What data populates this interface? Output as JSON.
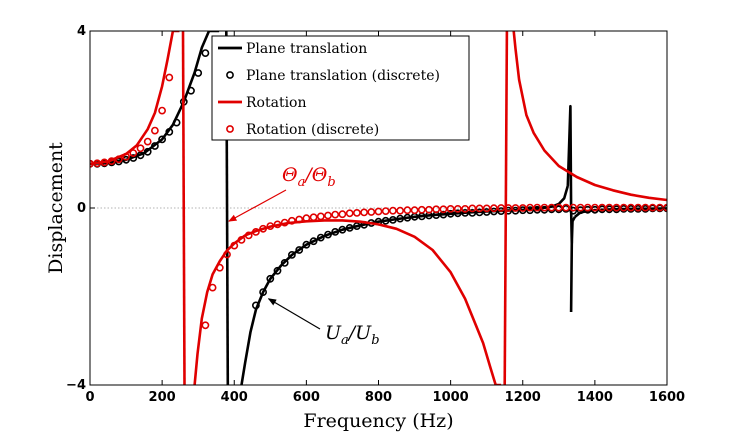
{
  "chart_data": {
    "type": "line",
    "xlabel": "Frequency (Hz)",
    "ylabel": "Displacement",
    "xlim": [
      0,
      1600
    ],
    "ylim": [
      -4,
      4
    ],
    "x_ticks": [
      0,
      200,
      400,
      600,
      800,
      1000,
      1200,
      1400,
      1600
    ],
    "y_ticks": [
      -4,
      0,
      4
    ],
    "zero_line": true,
    "legend_position": "top-right",
    "colors": {
      "black": "#000000",
      "red": "#e00000",
      "zero_line": "#9a9a9a"
    },
    "series": [
      {
        "name": "Plane translation",
        "kind": "line",
        "color": "#000000",
        "segments": [
          {
            "x": [
              0,
              50,
              100,
              150,
              200,
              230,
              260,
              290,
              310,
              330,
              345,
              358
            ],
            "y": [
              1.0,
              1.02,
              1.09,
              1.24,
              1.55,
              1.88,
              2.4,
              3.06,
              3.62,
              4.0,
              4.0,
              4.0
            ]
          },
          {
            "x": [
              378,
              382
            ],
            "y": [
              4.0,
              -4.0
            ]
          },
          {
            "x": [
              420,
              430,
              445,
              460,
              480,
              500,
              530,
              560,
              600,
              650,
              700,
              750,
              800,
              850,
              900,
              950,
              1000,
              1050,
              1100,
              1150,
              1200,
              1250,
              1280,
              1300,
              1315,
              1325
            ],
            "y": [
              -4.0,
              -3.5,
              -2.8,
              -2.3,
              -1.9,
              -1.6,
              -1.3,
              -1.06,
              -0.83,
              -0.63,
              -0.49,
              -0.39,
              -0.31,
              -0.25,
              -0.2,
              -0.16,
              -0.13,
              -0.1,
              -0.08,
              -0.06,
              -0.04,
              -0.01,
              0.03,
              0.09,
              0.22,
              0.5
            ]
          },
          {
            "x": [
              1325,
              1332,
              1334,
              1336
            ],
            "y": [
              0.5,
              2.3,
              0.0,
              -0.8
            ]
          },
          {
            "x": [
              1334,
              1336,
              1338,
              1345
            ],
            "y": [
              -2.35,
              -0.8,
              -0.3,
              -0.2
            ]
          },
          {
            "x": [
              1345,
              1360,
              1380,
              1400,
              1450,
              1500,
              1550,
              1600
            ],
            "y": [
              -0.2,
              -0.1,
              -0.07,
              -0.05,
              -0.03,
              -0.02,
              -0.015,
              -0.01
            ]
          }
        ]
      },
      {
        "name": "Plane translation (discrete)",
        "kind": "marker",
        "color": "#000000",
        "x": [
          0,
          20,
          40,
          60,
          80,
          100,
          120,
          140,
          160,
          180,
          200,
          220,
          240,
          260,
          280,
          300,
          320,
          460,
          480,
          500,
          520,
          540,
          560,
          580,
          600,
          620,
          640,
          660,
          680,
          700,
          720,
          740,
          760,
          780,
          800,
          820,
          840,
          860,
          880,
          900,
          920,
          940,
          960,
          980,
          1000,
          1020,
          1040,
          1060,
          1080,
          1100,
          1120,
          1140,
          1160,
          1180,
          1200,
          1220,
          1240,
          1260,
          1280,
          1300,
          1320,
          1340,
          1360,
          1380,
          1400,
          1420,
          1440,
          1460,
          1480,
          1500,
          1520,
          1540,
          1560,
          1580,
          1600
        ],
        "y": [
          1.0,
          1.0,
          1.01,
          1.03,
          1.05,
          1.09,
          1.13,
          1.19,
          1.27,
          1.4,
          1.55,
          1.72,
          1.93,
          2.4,
          2.65,
          3.05,
          3.5,
          -2.2,
          -1.9,
          -1.6,
          -1.42,
          -1.24,
          -1.06,
          -0.95,
          -0.83,
          -0.75,
          -0.67,
          -0.6,
          -0.54,
          -0.49,
          -0.45,
          -0.41,
          -0.38,
          -0.34,
          -0.31,
          -0.29,
          -0.27,
          -0.24,
          -0.22,
          -0.2,
          -0.19,
          -0.17,
          -0.16,
          -0.15,
          -0.13,
          -0.12,
          -0.11,
          -0.11,
          -0.1,
          -0.09,
          -0.08,
          -0.07,
          -0.06,
          -0.06,
          -0.05,
          -0.05,
          -0.04,
          -0.04,
          -0.03,
          -0.03,
          -0.02,
          -0.06,
          -0.05,
          -0.04,
          -0.04,
          -0.03,
          -0.03,
          -0.03,
          -0.02,
          -0.02,
          -0.02,
          -0.02,
          -0.01,
          -0.01,
          -0.01
        ]
      },
      {
        "name": "Rotation",
        "kind": "line",
        "color": "#e00000",
        "segments": [
          {
            "x": [
              0,
              50,
              100,
              130,
              160,
              180,
              200,
              215,
              230,
              240,
              248
            ],
            "y": [
              1.0,
              1.05,
              1.22,
              1.42,
              1.78,
              2.15,
              2.75,
              3.35,
              4.0,
              4.0,
              4.0
            ]
          },
          {
            "x": [
              258,
              262
            ],
            "y": [
              4.0,
              -4.0
            ]
          },
          {
            "x": [
              290,
              298,
              310,
              325,
              340,
              360,
              380,
              400,
              430,
              460,
              500,
              550,
              600,
              650,
              700,
              750,
              800,
              850,
              900,
              950,
              1000,
              1040,
              1070,
              1090,
              1110,
              1125,
              1135,
              1140
            ],
            "y": [
              -4.0,
              -3.3,
              -2.5,
              -1.9,
              -1.5,
              -1.2,
              -0.96,
              -0.8,
              -0.62,
              -0.52,
              -0.42,
              -0.34,
              -0.3,
              -0.28,
              -0.28,
              -0.31,
              -0.37,
              -0.47,
              -0.65,
              -0.95,
              -1.45,
              -2.05,
              -2.65,
              -3.05,
              -3.6,
              -4.0,
              -4.0,
              -4.0
            ]
          },
          {
            "x": [
              1150,
              1156
            ],
            "y": [
              -4.0,
              4.0
            ]
          },
          {
            "x": [
              1175,
              1180,
              1190,
              1210,
              1230,
              1260,
              1300,
              1350,
              1400,
              1450,
              1500,
              1550,
              1600
            ],
            "y": [
              4.0,
              3.6,
              2.9,
              2.1,
              1.7,
              1.3,
              0.95,
              0.7,
              0.52,
              0.4,
              0.3,
              0.23,
              0.18
            ]
          }
        ]
      },
      {
        "name": "Rotation (discrete)",
        "kind": "marker",
        "color": "#e00000",
        "x": [
          0,
          20,
          40,
          60,
          80,
          100,
          120,
          140,
          160,
          180,
          200,
          220,
          320,
          340,
          360,
          380,
          400,
          420,
          440,
          460,
          480,
          500,
          520,
          540,
          560,
          580,
          600,
          620,
          640,
          660,
          680,
          700,
          720,
          740,
          760,
          780,
          800,
          820,
          840,
          860,
          880,
          900,
          920,
          940,
          960,
          980,
          1000,
          1020,
          1040,
          1060,
          1080,
          1100,
          1120,
          1140,
          1160,
          1180,
          1200,
          1220,
          1240,
          1260,
          1280,
          1300,
          1320,
          1340,
          1360,
          1380,
          1400,
          1420,
          1440,
          1460,
          1480,
          1500,
          1520,
          1540,
          1560,
          1580,
          1600
        ],
        "y": [
          1.0,
          1.01,
          1.03,
          1.06,
          1.1,
          1.16,
          1.24,
          1.35,
          1.5,
          1.75,
          2.2,
          2.95,
          -2.65,
          -1.8,
          -1.35,
          -1.05,
          -0.85,
          -0.72,
          -0.62,
          -0.54,
          -0.47,
          -0.41,
          -0.37,
          -0.33,
          -0.29,
          -0.26,
          -0.23,
          -0.21,
          -0.19,
          -0.17,
          -0.15,
          -0.14,
          -0.12,
          -0.11,
          -0.1,
          -0.09,
          -0.08,
          -0.07,
          -0.06,
          -0.06,
          -0.05,
          -0.05,
          -0.04,
          -0.04,
          -0.03,
          -0.03,
          -0.02,
          -0.02,
          -0.02,
          -0.01,
          -0.01,
          -0.01,
          -0.005,
          0.0,
          0.0,
          0.0,
          0.0,
          0.01,
          0.01,
          0.01,
          0.01,
          0.01,
          0.01,
          0.01,
          0.01,
          0.01,
          0.01,
          0.01,
          0.01,
          0.01,
          0.01,
          0.01,
          0.01,
          0.01,
          0.01,
          0.01,
          0.01
        ]
      }
    ],
    "annotations": [
      {
        "id": "theta",
        "text_main": "Θ",
        "sub_a": "a",
        "slash": "/Θ",
        "sub_b": "b",
        "color": "#e00000",
        "arrow_to": [
          385,
          -0.3
        ]
      },
      {
        "id": "u",
        "text_main": "U",
        "sub_a": "a",
        "slash": "/U",
        "sub_b": "b",
        "color": "#000000",
        "arrow_to": [
          495,
          -2.05
        ]
      }
    ]
  }
}
